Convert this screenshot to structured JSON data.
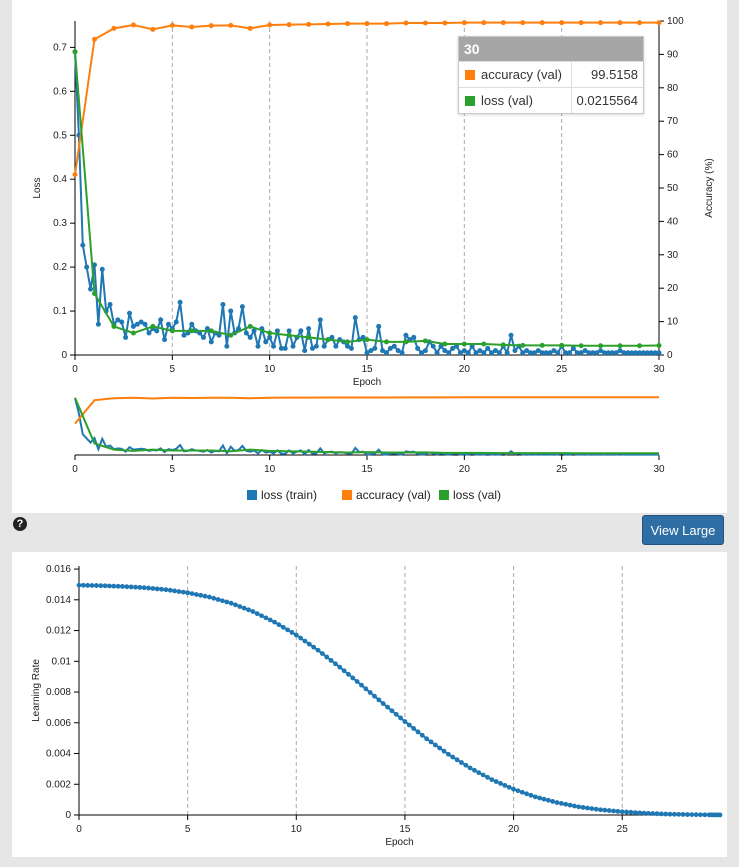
{
  "colors": {
    "loss_train": "#1f77b4",
    "accuracy_val": "#ff7f0e",
    "loss_val": "#2ca02c"
  },
  "tooltip": {
    "epoch": "30",
    "rows": [
      {
        "name": "accuracy (val)",
        "value": "99.5158",
        "color": "#ff7f0e"
      },
      {
        "name": "loss (val)",
        "value": "0.0215564",
        "color": "#2ca02c"
      }
    ]
  },
  "legend": [
    "loss (train)",
    "accuracy (val)",
    "loss (val)"
  ],
  "buttons": {
    "view_large": "View Large",
    "help": "?"
  },
  "chart_data": [
    {
      "type": "line",
      "xlabel": "Epoch",
      "ylabel_left": "Loss",
      "ylabel_right": "Accuracy (%)",
      "xlim": [
        0,
        30
      ],
      "ylim_left": [
        0,
        0.76
      ],
      "ylim_right": [
        0,
        100
      ],
      "x_ticks": [
        0,
        5,
        10,
        15,
        20,
        25,
        30
      ],
      "y_ticks_left": [
        0,
        0.1,
        0.2,
        0.3,
        0.4,
        0.5,
        0.6,
        0.7
      ],
      "y_ticks_right": [
        0,
        10,
        20,
        30,
        40,
        50,
        60,
        70,
        80,
        90,
        100
      ],
      "grid": "vertical dashed",
      "legend_position": "bottom",
      "series": [
        {
          "name": "loss (train)",
          "axis": "left",
          "x": [
            0,
            0.2,
            0.4,
            0.6,
            0.8,
            1.0,
            1.2,
            1.4,
            1.6,
            1.8,
            2.0,
            2.2,
            2.4,
            2.6,
            2.8,
            3.0,
            3.2,
            3.4,
            3.6,
            3.8,
            4.0,
            4.2,
            4.4,
            4.6,
            4.8,
            5.0,
            5.2,
            5.4,
            5.6,
            5.8,
            6.0,
            6.2,
            6.4,
            6.6,
            6.8,
            7.0,
            7.2,
            7.4,
            7.6,
            7.8,
            8.0,
            8.2,
            8.4,
            8.6,
            8.8,
            9.0,
            9.2,
            9.4,
            9.6,
            9.8,
            10.0,
            10.2,
            10.4,
            10.6,
            10.8,
            11.0,
            11.2,
            11.4,
            11.6,
            11.8,
            12.0,
            12.2,
            12.4,
            12.6,
            12.8,
            13.0,
            13.2,
            13.4,
            13.6,
            13.8,
            14.0,
            14.2,
            14.4,
            14.6,
            14.8,
            15.0,
            15.2,
            15.4,
            15.6,
            15.8,
            16.0,
            16.2,
            16.4,
            16.6,
            16.8,
            17.0,
            17.2,
            17.4,
            17.6,
            17.8,
            18.0,
            18.2,
            18.4,
            18.6,
            18.8,
            19.0,
            19.2,
            19.4,
            19.6,
            19.8,
            20.0,
            20.2,
            20.4,
            20.6,
            20.8,
            21.0,
            21.2,
            21.4,
            21.6,
            21.8,
            22.0,
            22.2,
            22.4,
            22.6,
            22.8,
            23.0,
            23.2,
            23.4,
            23.6,
            23.8,
            24.0,
            24.2,
            24.4,
            24.6,
            24.8,
            25.0,
            25.2,
            25.4,
            25.6,
            25.8,
            26.0,
            26.2,
            26.4,
            26.6,
            26.8,
            27.0,
            27.2,
            27.4,
            27.6,
            27.8,
            28.0,
            28.2,
            28.4,
            28.6,
            28.8,
            29.0,
            29.2,
            29.4,
            29.6,
            29.8,
            30.0
          ],
          "values": [
            0.69,
            0.5,
            0.25,
            0.2,
            0.15,
            0.205,
            0.07,
            0.195,
            0.1,
            0.115,
            0.07,
            0.08,
            0.075,
            0.04,
            0.095,
            0.065,
            0.07,
            0.075,
            0.07,
            0.05,
            0.06,
            0.055,
            0.08,
            0.035,
            0.07,
            0.06,
            0.075,
            0.12,
            0.045,
            0.05,
            0.07,
            0.055,
            0.05,
            0.04,
            0.06,
            0.03,
            0.05,
            0.045,
            0.115,
            0.02,
            0.1,
            0.05,
            0.06,
            0.11,
            0.05,
            0.04,
            0.055,
            0.02,
            0.06,
            0.03,
            0.04,
            0.02,
            0.055,
            0.015,
            0.015,
            0.055,
            0.02,
            0.04,
            0.055,
            0.01,
            0.06,
            0.015,
            0.02,
            0.08,
            0.02,
            0.035,
            0.04,
            0.02,
            0.035,
            0.03,
            0.02,
            0.015,
            0.085,
            0.035,
            0.04,
            0.005,
            0.01,
            0.015,
            0.065,
            0.01,
            0.005,
            0.015,
            0.02,
            0.01,
            0.005,
            0.045,
            0.035,
            0.04,
            0.015,
            0.005,
            0.01,
            0.03,
            0.02,
            0.005,
            0.02,
            0.01,
            0.005,
            0.015,
            0.02,
            0.005,
            0.01,
            0.005,
            0.02,
            0.005,
            0.01,
            0.005,
            0.015,
            0.005,
            0.01,
            0.005,
            0.02,
            0.005,
            0.045,
            0.01,
            0.02,
            0.005,
            0.01,
            0.005,
            0.005,
            0.01,
            0.005,
            0.005,
            0.005,
            0.01,
            0.005,
            0.02,
            0.005,
            0.005,
            0.015,
            0.005,
            0.005,
            0.01,
            0.005,
            0.005,
            0.005,
            0.01,
            0.005,
            0.005,
            0.005,
            0.005,
            0.01,
            0.005,
            0.005,
            0.005,
            0.005,
            0.005,
            0.005,
            0.005,
            0.005,
            0.005,
            0.005
          ]
        },
        {
          "name": "accuracy (val)",
          "axis": "right",
          "x": [
            0,
            1,
            2,
            3,
            4,
            5,
            6,
            7,
            8,
            9,
            10,
            11,
            12,
            13,
            14,
            15,
            16,
            17,
            18,
            19,
            20,
            21,
            22,
            23,
            24,
            25,
            26,
            27,
            28,
            29,
            30
          ],
          "values": [
            54,
            94.5,
            97.8,
            98.8,
            97.5,
            98.7,
            98.2,
            98.6,
            98.7,
            97.8,
            98.8,
            98.9,
            99.0,
            99.1,
            99.2,
            99.2,
            99.2,
            99.4,
            99.4,
            99.4,
            99.5,
            99.5,
            99.5,
            99.5,
            99.5,
            99.5,
            99.5,
            99.5,
            99.5,
            99.5,
            99.5158
          ]
        },
        {
          "name": "loss (val)",
          "axis": "left",
          "x": [
            0,
            1,
            2,
            3,
            4,
            5,
            6,
            7,
            8,
            9,
            10,
            11,
            12,
            13,
            14,
            15,
            16,
            17,
            18,
            19,
            20,
            21,
            22,
            23,
            24,
            25,
            26,
            27,
            28,
            29,
            30
          ],
          "values": [
            0.69,
            0.14,
            0.065,
            0.05,
            0.065,
            0.055,
            0.055,
            0.055,
            0.045,
            0.065,
            0.05,
            0.045,
            0.04,
            0.035,
            0.03,
            0.035,
            0.03,
            0.03,
            0.032,
            0.025,
            0.025,
            0.025,
            0.023,
            0.022,
            0.022,
            0.022,
            0.021,
            0.021,
            0.021,
            0.021,
            0.0215564
          ]
        }
      ]
    },
    {
      "type": "line",
      "xlim": [
        0,
        30
      ],
      "x_ticks": [
        0,
        5,
        10,
        15,
        20,
        25,
        30
      ],
      "series_ref": [
        "loss (train)",
        "accuracy (val)",
        "loss (val)"
      ]
    },
    {
      "type": "line",
      "xlabel": "Epoch",
      "ylabel": "Learning Rate",
      "xlim": [
        0,
        29.5
      ],
      "ylim": [
        0,
        0.0162
      ],
      "x_ticks": [
        0,
        5,
        10,
        15,
        20,
        25
      ],
      "y_ticks": [
        0,
        0.002,
        0.004,
        0.006,
        0.008,
        0.01,
        0.012,
        0.014,
        0.016
      ],
      "y_tick_labels": [
        "0",
        "0.002",
        "0.004",
        "0.006",
        "0.008",
        "0.01",
        "0.012",
        "0.014",
        "0.016"
      ],
      "grid": "vertical dashed",
      "series": [
        {
          "name": "",
          "x": [
            0,
            1,
            2,
            3,
            4,
            5,
            6,
            7,
            8,
            9,
            10,
            11,
            12,
            13,
            14,
            15,
            16,
            17,
            18,
            19,
            20,
            21,
            22,
            23,
            24,
            25,
            26,
            27,
            28,
            29,
            29.5
          ],
          "values": [
            0.01495,
            0.01492,
            0.01487,
            0.01479,
            0.01466,
            0.01446,
            0.01418,
            0.01378,
            0.01324,
            0.01255,
            0.01171,
            0.01072,
            0.00962,
            0.00845,
            0.00725,
            0.00608,
            0.00496,
            0.00395,
            0.00306,
            0.0023,
            0.00168,
            0.00118,
            0.00081,
            0.00053,
            0.00034,
            0.00021,
            0.00012,
            6e-05,
            3e-05,
            1e-05,
            5e-06
          ]
        }
      ]
    }
  ]
}
